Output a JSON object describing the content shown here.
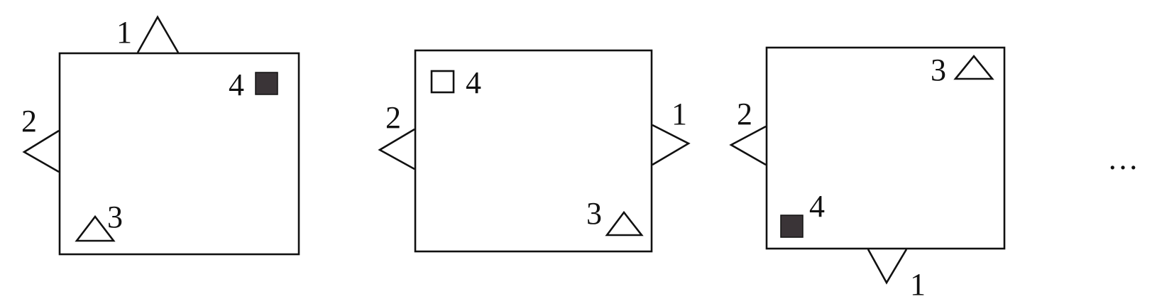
{
  "diagram": {
    "panels": [
      {
        "labels": {
          "top": "1",
          "left": "2",
          "bottom_left": "3",
          "top_right": "4"
        },
        "square_4": "filled"
      },
      {
        "labels": {
          "left": "2",
          "top_left": "4",
          "right": "1",
          "bottom_right": "3"
        },
        "square_4": "outline"
      },
      {
        "labels": {
          "left": "2",
          "top_right": "3",
          "bottom_left": "4",
          "bottom": "1"
        },
        "square_4": "filled"
      }
    ],
    "continuation": "…",
    "colors": {
      "stroke": "#111111",
      "filled_square": "#3a3437",
      "background": "#ffffff"
    }
  }
}
